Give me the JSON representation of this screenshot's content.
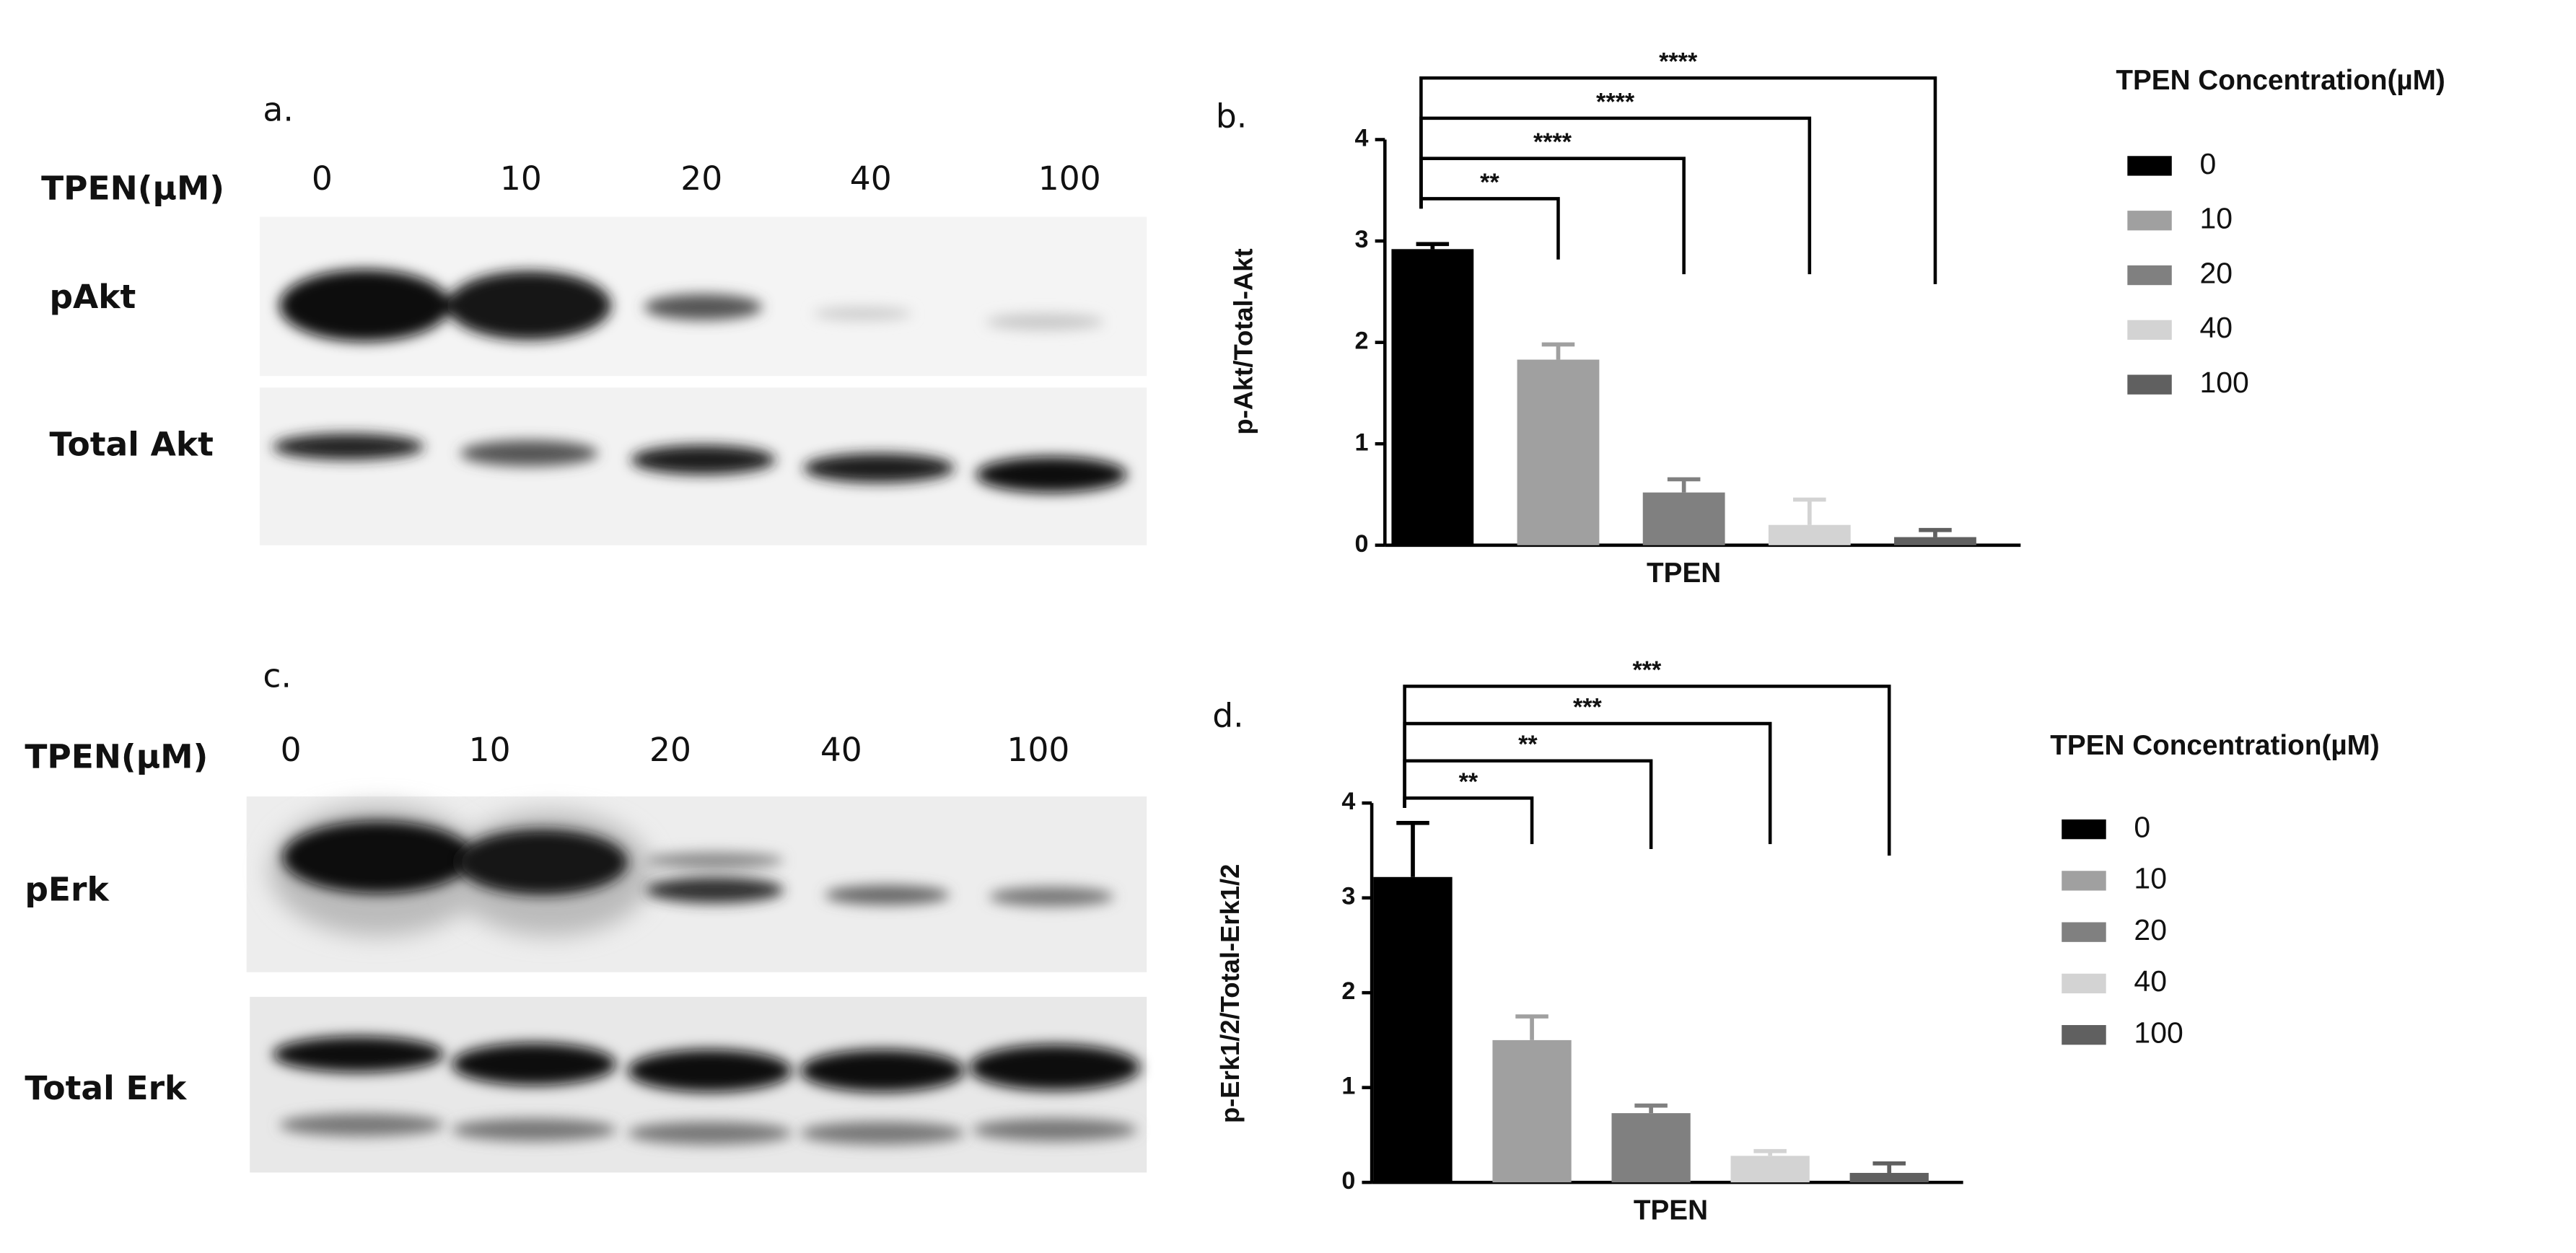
{
  "chart_data": [
    {
      "type": "bar",
      "panel_label": "b.",
      "y_label": "p-Akt/Total-Akt",
      "x_label": "TPEN",
      "categories": [
        "0",
        "10",
        "20",
        "40",
        "100"
      ],
      "values": [
        2.92,
        1.83,
        0.52,
        0.2,
        0.08
      ],
      "errors": [
        0.05,
        0.15,
        0.13,
        0.25,
        0.07
      ],
      "colors": [
        "#000000",
        "#a0a0a0",
        "#808080",
        "#d3d3d3",
        "#606060"
      ],
      "ylim": [
        0,
        4
      ],
      "yticks": [
        0,
        1,
        2,
        3,
        4
      ],
      "legend_title": "TPEN Concentration(µM)",
      "significance": [
        "**",
        "****",
        "****",
        "****"
      ]
    },
    {
      "type": "bar",
      "panel_label": "d.",
      "y_label": "p-Erk1/2/Total-Erk1/2",
      "x_label": "TPEN",
      "categories": [
        "0",
        "10",
        "20",
        "40",
        "100"
      ],
      "values": [
        3.22,
        1.5,
        0.73,
        0.28,
        0.1
      ],
      "errors": [
        0.57,
        0.25,
        0.08,
        0.05,
        0.1
      ],
      "colors": [
        "#000000",
        "#a0a0a0",
        "#808080",
        "#d3d3d3",
        "#606060"
      ],
      "ylim": [
        0,
        4
      ],
      "yticks": [
        0,
        1,
        2,
        3,
        4
      ],
      "legend_title": "TPEN Concentration(µM)",
      "significance": [
        "**",
        "**",
        "***",
        "***"
      ]
    }
  ],
  "blots": [
    {
      "panel_label": "a.",
      "dose_label": "TPEN(µM)",
      "lanes": [
        "0",
        "10",
        "20",
        "40",
        "100"
      ],
      "rows": [
        "pAkt",
        "Total Akt"
      ]
    },
    {
      "panel_label": "c.",
      "dose_label": "TPEN(µM)",
      "lanes": [
        "0",
        "10",
        "20",
        "40",
        "100"
      ],
      "rows": [
        "pErk",
        "Total Erk"
      ]
    }
  ]
}
